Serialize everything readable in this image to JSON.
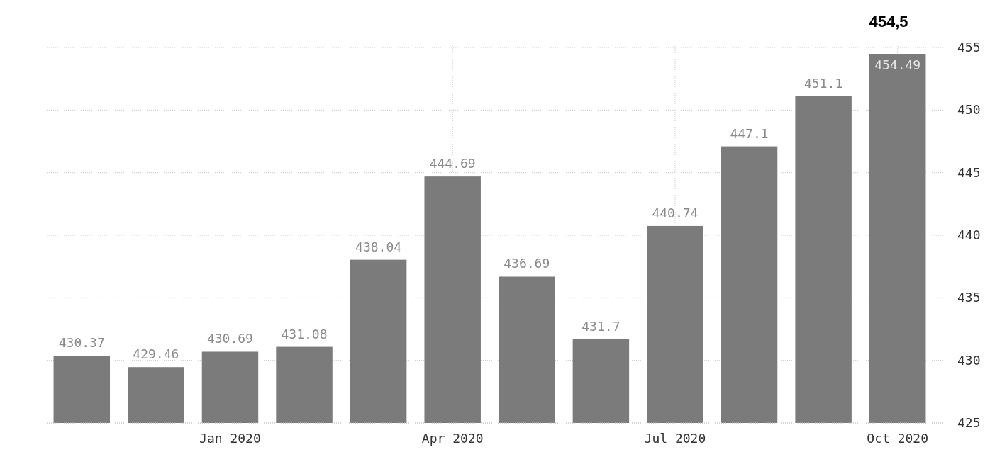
{
  "chart_data": {
    "type": "bar",
    "categories": [
      null,
      null,
      "Jan 2020",
      null,
      null,
      "Apr 2020",
      null,
      null,
      "Jul 2020",
      null,
      null,
      "Oct 2020"
    ],
    "values": [
      430.37,
      429.46,
      430.69,
      431.08,
      438.04,
      444.69,
      436.69,
      431.7,
      440.74,
      447.1,
      451.1,
      454.49
    ],
    "color": "#7b7b7b",
    "ylim": [
      425,
      455
    ],
    "yticks": [
      425,
      430,
      435,
      440,
      445,
      450,
      455
    ],
    "grid": true,
    "data_labels": true,
    "annotations": [
      "454,5"
    ]
  }
}
